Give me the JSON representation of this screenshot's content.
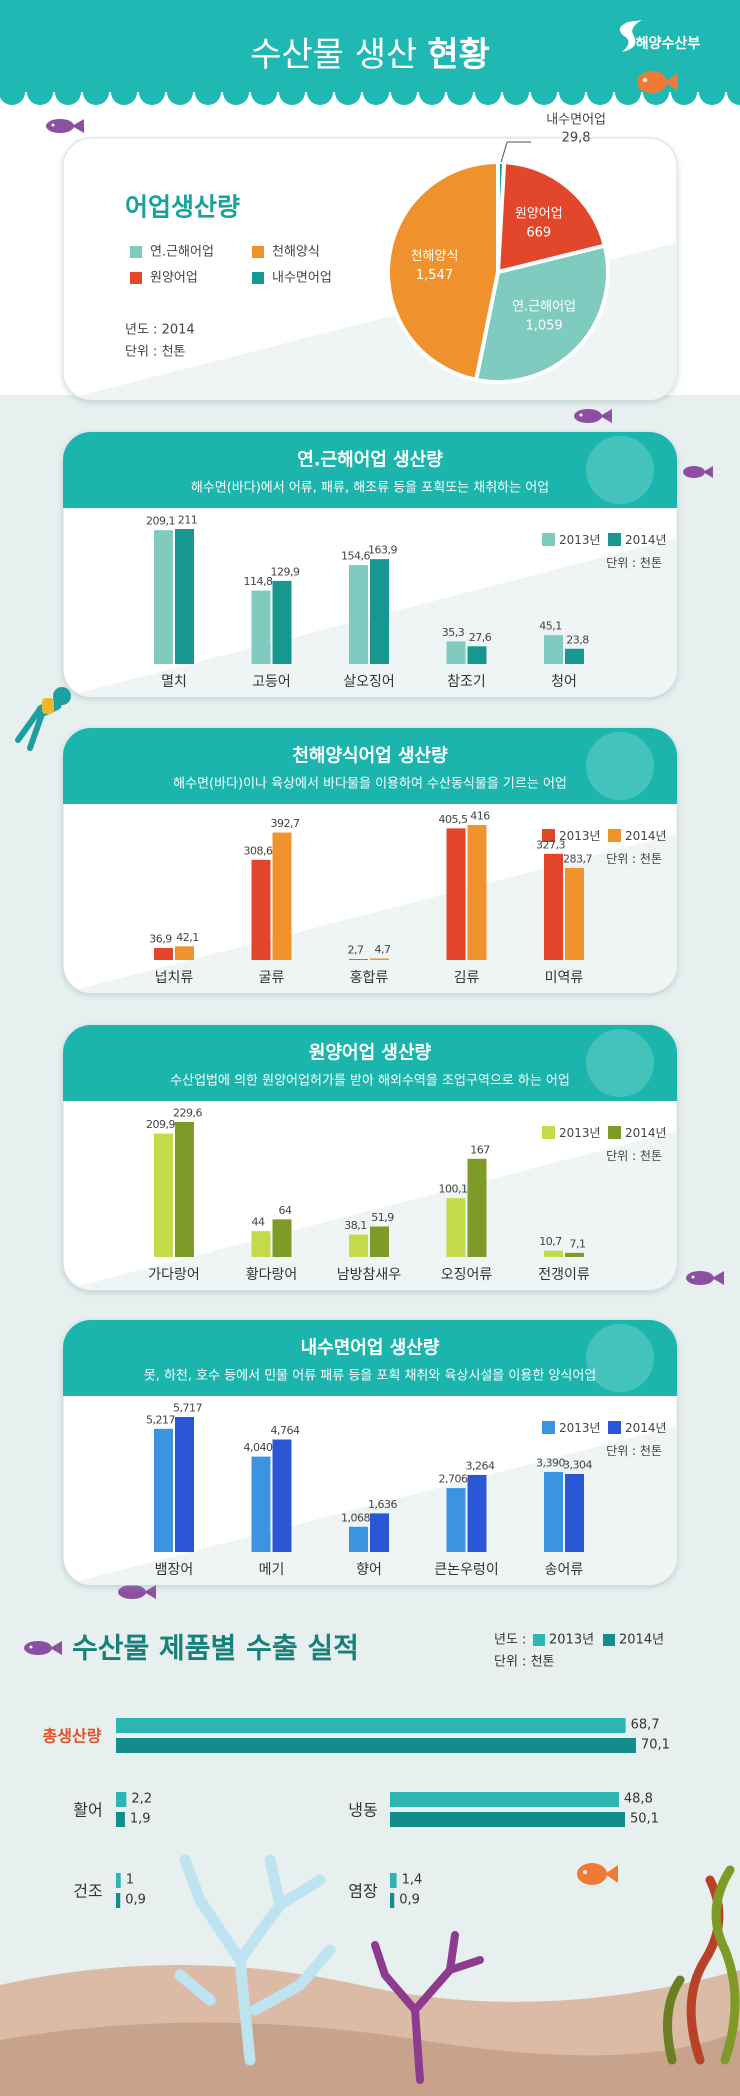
{
  "header": {
    "title_light": "수산물 생산",
    "title_bold": "현황",
    "logo": "해양수산부"
  },
  "chart_data": [
    {
      "type": "pie",
      "title": "어업생산량",
      "categories": [
        "연.근해어업",
        "천해양식",
        "내수면어업",
        "원양어업"
      ],
      "values": [
        1059,
        1547,
        29.8,
        669
      ],
      "value_labels": [
        "1,059",
        "1,547",
        "29,8",
        "669"
      ],
      "colors": [
        "#80cbbf",
        "#ef912c",
        "#149a92",
        "#e2462b"
      ],
      "year_label": "년도 : 2014",
      "unit": "단위 : 천톤"
    },
    {
      "type": "bar",
      "title": "연.근해어업 생산량",
      "subtitle": "해수면(바다)에서 어류, 패류, 해조류 등을 포획또는 채취하는 어업",
      "unit": "단위 : 천톤",
      "categories": [
        "멸치",
        "고등어",
        "살오징어",
        "참조기",
        "청어"
      ],
      "series": [
        {
          "name": "2013년",
          "color": "#80cbbf",
          "values": [
            209.1,
            114.8,
            154.6,
            35.3,
            45.1
          ],
          "value_labels": [
            "209,1",
            "114,8",
            "154,6",
            "35,3",
            "45,1"
          ]
        },
        {
          "name": "2014년",
          "color": "#17978f",
          "values": [
            211,
            129.9,
            163.9,
            27.6,
            23.8
          ],
          "value_labels": [
            "211",
            "129,9",
            "163,9",
            "27,6",
            "23,8"
          ]
        }
      ]
    },
    {
      "type": "bar",
      "title": "천해양식어업 생산량",
      "subtitle": "해수면(바다)이나 육상에서 바다물을 이용하여 수산동식물을 기르는 어업",
      "unit": "단위 : 천톤",
      "categories": [
        "넙치류",
        "굴류",
        "홍합류",
        "김류",
        "미역류"
      ],
      "series": [
        {
          "name": "2013년",
          "color": "#e3452a",
          "values": [
            36.9,
            308.6,
            2.7,
            405.5,
            327.3
          ],
          "value_labels": [
            "36,9",
            "308,6",
            "2,7",
            "405,5",
            "327,3"
          ]
        },
        {
          "name": "2014년",
          "color": "#f0932c",
          "values": [
            42.1,
            392.7,
            4.7,
            416,
            283.7
          ],
          "value_labels": [
            "42,1",
            "392,7",
            "4,7",
            "416",
            "283,7"
          ]
        }
      ]
    },
    {
      "type": "bar",
      "title": "원양어업 생산량",
      "subtitle": "수산업법에 의한 원양어업허가를 받아 해외수역을 조업구역으로 하는 어업",
      "unit": "단위 : 천톤",
      "categories": [
        "가다랑어",
        "황다랑어",
        "남방참새우",
        "오징어류",
        "전갱이류"
      ],
      "series": [
        {
          "name": "2013년",
          "color": "#c4da4b",
          "values": [
            209.9,
            44,
            38.1,
            100.1,
            10.7
          ],
          "value_labels": [
            "209,9",
            "44",
            "38,1",
            "100,1",
            "10,7"
          ]
        },
        {
          "name": "2014년",
          "color": "#7f9b27",
          "values": [
            229.6,
            64,
            51.9,
            167,
            7.1
          ],
          "value_labels": [
            "229,6",
            "64",
            "51,9",
            "167",
            "7,1"
          ]
        }
      ]
    },
    {
      "type": "bar",
      "title": "내수면어업 생산량",
      "subtitle": "못, 하천, 호수 등에서 민물 어류 패류 등을 포획 채취와 육상시설을 이용한 양식어업",
      "unit": "단위 : 천톤",
      "categories": [
        "뱀장어",
        "메기",
        "향어",
        "큰논우렁이",
        "송어류"
      ],
      "series": [
        {
          "name": "2013년",
          "color": "#3b94e0",
          "values": [
            5217,
            4040,
            1068,
            2706,
            3390
          ],
          "value_labels": [
            "5,217",
            "4,040",
            "1,068",
            "2,706",
            "3,390"
          ]
        },
        {
          "name": "2014년",
          "color": "#2b56d6",
          "values": [
            5717,
            4764,
            1636,
            3264,
            3304
          ],
          "value_labels": [
            "5,717",
            "4,764",
            "1,636",
            "3,264",
            "3,304"
          ]
        }
      ]
    },
    {
      "type": "hbar",
      "title": "수산물 제품별 수출 실적",
      "year_label": "년도 :",
      "unit": "단위 : 천톤",
      "categories": [
        "총생산량",
        "활어",
        "냉동",
        "건조",
        "염장"
      ],
      "series": [
        {
          "name": "2013년",
          "color": "#2cb6b3",
          "values": [
            68.7,
            2.2,
            48.8,
            1,
            1.4
          ],
          "value_labels": [
            "68,7",
            "2,2",
            "48,8",
            "1",
            "1,4"
          ]
        },
        {
          "name": "2014년",
          "color": "#138d89",
          "values": [
            70.1,
            1.9,
            50.1,
            0.9,
            0.9
          ],
          "value_labels": [
            "70,1",
            "1,9",
            "50,1",
            "0,9",
            "0,9"
          ]
        }
      ]
    }
  ]
}
